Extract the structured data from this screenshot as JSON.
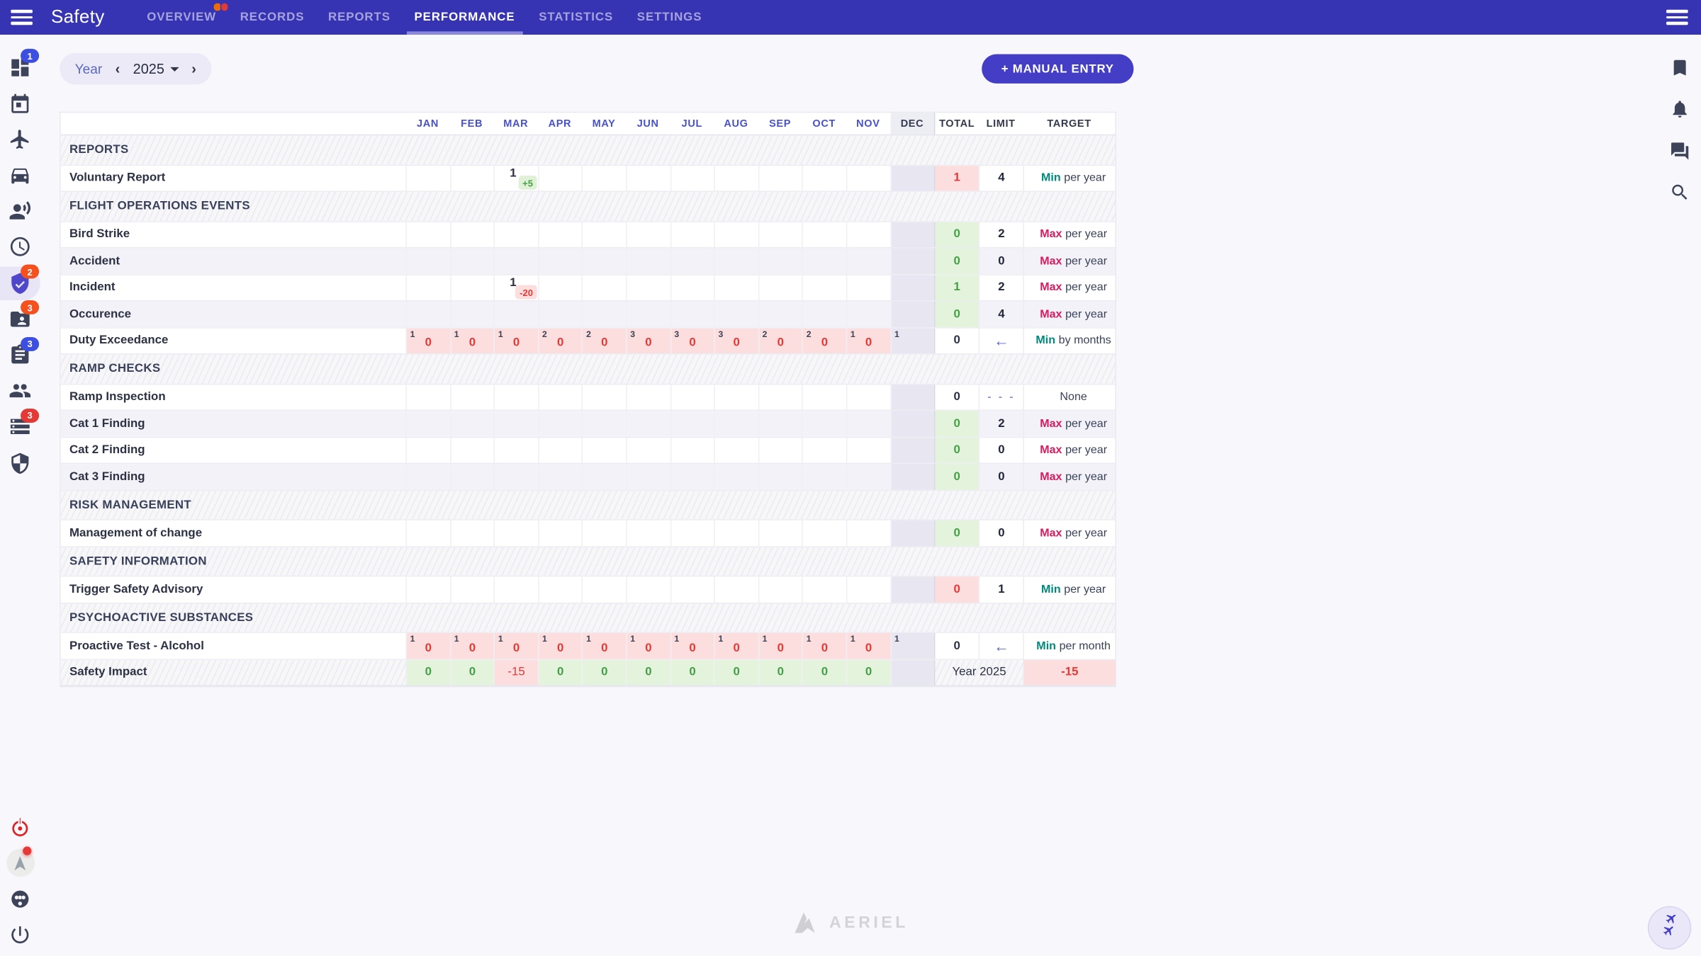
{
  "app": {
    "title": "Safety"
  },
  "topbar": {
    "tabs": [
      {
        "label": "OVERVIEW",
        "active": false,
        "dots": [
          "#ef6c00",
          "#e53935"
        ]
      },
      {
        "label": "RECORDS",
        "active": false
      },
      {
        "label": "REPORTS",
        "active": false
      },
      {
        "label": "PERFORMANCE",
        "active": true
      },
      {
        "label": "STATISTICS",
        "active": false
      },
      {
        "label": "SETTINGS",
        "active": false
      }
    ]
  },
  "toolbar": {
    "period_label": "Year",
    "year": "2025",
    "manual_entry_label": "+ MANUAL ENTRY"
  },
  "left_sidebar": [
    {
      "icon": "dashboard-icon",
      "badge": {
        "text": "1",
        "color": "#3d4fe0"
      }
    },
    {
      "icon": "calendar-icon"
    },
    {
      "icon": "airplane-icon"
    },
    {
      "icon": "vehicle-icon"
    },
    {
      "icon": "record-voice-icon"
    },
    {
      "icon": "clock-icon"
    },
    {
      "icon": "shield-check-icon",
      "active": true,
      "badge": {
        "text": "2",
        "color": "#f4511e"
      }
    },
    {
      "icon": "folder-person-icon",
      "badge": {
        "text": "3",
        "color": "#f4511e"
      }
    },
    {
      "icon": "clipboard-icon",
      "badge": {
        "text": "3",
        "color": "#3d4fe0"
      }
    },
    {
      "icon": "people-icon"
    },
    {
      "icon": "storage-icon",
      "badge": {
        "text": "3",
        "color": "#e53935"
      }
    },
    {
      "icon": "shield-icon"
    }
  ],
  "left_bottom": [
    {
      "icon": "emergency-icon",
      "color": "#e0201f"
    },
    {
      "icon": "nav-logo-icon",
      "dot": true
    },
    {
      "icon": "wheel-icon"
    },
    {
      "icon": "power-icon"
    }
  ],
  "right_sidebar": [
    {
      "icon": "bookmark-icon"
    },
    {
      "icon": "bell-icon"
    },
    {
      "icon": "chat-icon"
    },
    {
      "icon": "search-icon"
    }
  ],
  "table": {
    "month_headers": [
      "JAN",
      "FEB",
      "MAR",
      "APR",
      "MAY",
      "JUN",
      "JUL",
      "AUG",
      "SEP",
      "OCT",
      "NOV",
      "DEC"
    ],
    "summary_headers": [
      "TOTAL",
      "LIMIT",
      "TARGET"
    ],
    "sections": [
      {
        "title": "REPORTS",
        "rows": [
          {
            "label": "Voluntary Report",
            "cells": [
              null,
              null,
              {
                "value": "1",
                "badge": "+5",
                "badge_state": "good"
              },
              null,
              null,
              null,
              null,
              null,
              null,
              null,
              null,
              null
            ],
            "total": {
              "value": "1",
              "state": "bad"
            },
            "limit": {
              "value": "4"
            },
            "target": {
              "em": "Min",
              "em_state": "min",
              "text": "per year"
            }
          }
        ]
      },
      {
        "title": "FLIGHT OPERATIONS EVENTS",
        "rows": [
          {
            "label": "Bird Strike",
            "total": {
              "value": "0",
              "state": "good"
            },
            "limit": {
              "value": "2"
            },
            "target": {
              "em": "Max",
              "em_state": "max",
              "text": "per year"
            }
          },
          {
            "label": "Accident",
            "total": {
              "value": "0",
              "state": "good"
            },
            "limit": {
              "value": "0"
            },
            "target": {
              "em": "Max",
              "em_state": "max",
              "text": "per year"
            }
          },
          {
            "label": "Incident",
            "cells": [
              null,
              null,
              {
                "value": "1",
                "badge": "-20",
                "badge_state": "bad"
              },
              null,
              null,
              null,
              null,
              null,
              null,
              null,
              null,
              null
            ],
            "total": {
              "value": "1",
              "state": "good"
            },
            "limit": {
              "value": "2"
            },
            "target": {
              "em": "Max",
              "em_state": "max",
              "text": "per year"
            }
          },
          {
            "label": "Occurence",
            "total": {
              "value": "0",
              "state": "good"
            },
            "limit": {
              "value": "4"
            },
            "target": {
              "em": "Max",
              "em_state": "max",
              "text": "per year"
            }
          },
          {
            "label": "Duty Exceedance",
            "cells": [
              {
                "sup": "1",
                "value": "0",
                "state": "bad"
              },
              {
                "sup": "1",
                "value": "0",
                "state": "bad"
              },
              {
                "sup": "1",
                "value": "0",
                "state": "bad"
              },
              {
                "sup": "2",
                "value": "0",
                "state": "bad"
              },
              {
                "sup": "2",
                "value": "0",
                "state": "bad"
              },
              {
                "sup": "3",
                "value": "0",
                "state": "bad"
              },
              {
                "sup": "3",
                "value": "0",
                "state": "bad"
              },
              {
                "sup": "3",
                "value": "0",
                "state": "bad"
              },
              {
                "sup": "2",
                "value": "0",
                "state": "bad"
              },
              {
                "sup": "2",
                "value": "0",
                "state": "bad"
              },
              {
                "sup": "1",
                "value": "0",
                "state": "bad"
              },
              {
                "sup": "1"
              }
            ],
            "total": {
              "value": "0",
              "state": "neutral"
            },
            "limit": {
              "icon": "arrow-left"
            },
            "target": {
              "em": "Min",
              "em_state": "min",
              "text": "by months"
            }
          }
        ]
      },
      {
        "title": "RAMP CHECKS",
        "rows": [
          {
            "label": "Ramp Inspection",
            "total": {
              "value": "0",
              "state": "neutral"
            },
            "limit": {
              "value": "- - -",
              "muted": true
            },
            "target": {
              "text": "None"
            }
          },
          {
            "label": "Cat 1 Finding",
            "total": {
              "value": "0",
              "state": "good"
            },
            "limit": {
              "value": "2"
            },
            "target": {
              "em": "Max",
              "em_state": "max",
              "text": "per year"
            }
          },
          {
            "label": "Cat 2 Finding",
            "total": {
              "value": "0",
              "state": "good"
            },
            "limit": {
              "value": "0"
            },
            "target": {
              "em": "Max",
              "em_state": "max",
              "text": "per year"
            }
          },
          {
            "label": "Cat 3 Finding",
            "total": {
              "value": "0",
              "state": "good"
            },
            "limit": {
              "value": "0"
            },
            "target": {
              "em": "Max",
              "em_state": "max",
              "text": "per year"
            }
          }
        ]
      },
      {
        "title": "RISK MANAGEMENT",
        "rows": [
          {
            "label": "Management of change",
            "total": {
              "value": "0",
              "state": "good"
            },
            "limit": {
              "value": "0"
            },
            "target": {
              "em": "Max",
              "em_state": "max",
              "text": "per year"
            }
          }
        ]
      },
      {
        "title": "SAFETY INFORMATION",
        "rows": [
          {
            "label": "Trigger Safety Advisory",
            "total": {
              "value": "0",
              "state": "bad"
            },
            "limit": {
              "value": "1"
            },
            "target": {
              "em": "Min",
              "em_state": "min",
              "text": "per year"
            }
          }
        ]
      },
      {
        "title": "PSYCHOACTIVE SUBSTANCES",
        "rows": [
          {
            "label": "Proactive Test - Alcohol",
            "cells": [
              {
                "sup": "1",
                "value": "0",
                "state": "bad"
              },
              {
                "sup": "1",
                "value": "0",
                "state": "bad"
              },
              {
                "sup": "1",
                "value": "0",
                "state": "bad"
              },
              {
                "sup": "1",
                "value": "0",
                "state": "bad"
              },
              {
                "sup": "1",
                "value": "0",
                "state": "bad"
              },
              {
                "sup": "1",
                "value": "0",
                "state": "bad"
              },
              {
                "sup": "1",
                "value": "0",
                "state": "bad"
              },
              {
                "sup": "1",
                "value": "0",
                "state": "bad"
              },
              {
                "sup": "1",
                "value": "0",
                "state": "bad"
              },
              {
                "sup": "1",
                "value": "0",
                "state": "bad"
              },
              {
                "sup": "1",
                "value": "0",
                "state": "bad"
              },
              {
                "sup": "1"
              }
            ],
            "total": {
              "value": "0",
              "state": "neutral"
            },
            "limit": {
              "icon": "arrow-left"
            },
            "target": {
              "em": "Min",
              "em_state": "min",
              "text": "per month"
            }
          }
        ]
      }
    ],
    "impact_row": {
      "label": "Safety Impact",
      "values": [
        {
          "value": "0",
          "state": "good"
        },
        {
          "value": "0",
          "state": "good"
        },
        {
          "value": "-15",
          "state": "bad"
        },
        {
          "value": "0",
          "state": "good"
        },
        {
          "value": "0",
          "state": "good"
        },
        {
          "value": "0",
          "state": "good"
        },
        {
          "value": "0",
          "state": "good"
        },
        {
          "value": "0",
          "state": "good"
        },
        {
          "value": "0",
          "state": "good"
        },
        {
          "value": "0",
          "state": "good"
        },
        {
          "value": "0",
          "state": "good"
        },
        null
      ],
      "year_label": "Year 2025",
      "total": {
        "value": "-15",
        "state": "bad"
      }
    }
  },
  "footer": {
    "brand": "AERIEL"
  }
}
